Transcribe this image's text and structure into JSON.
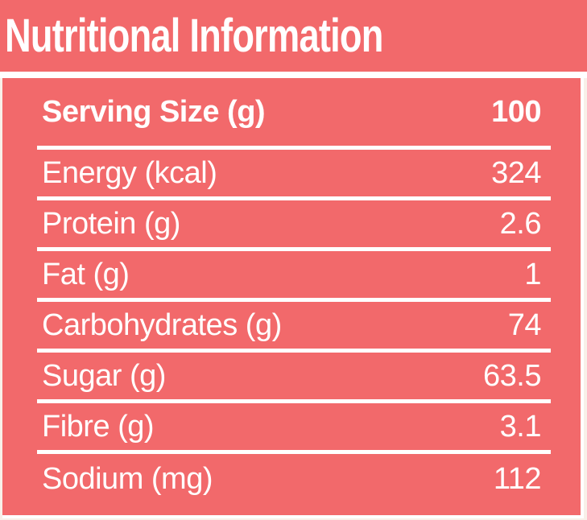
{
  "title": "Nutritional Information",
  "colors": {
    "coral": "#F2696B",
    "white": "#FFFFFF",
    "cream": "#F8F0E9",
    "text": "#FFFFFF"
  },
  "table": {
    "rows": [
      {
        "label": "Serving Size (g)",
        "value": "100",
        "bold": true
      },
      {
        "label": "Energy (kcal)",
        "value": "324",
        "bold": false
      },
      {
        "label": "Protein (g)",
        "value": "2.6",
        "bold": false
      },
      {
        "label": "Fat (g)",
        "value": "1",
        "bold": false
      },
      {
        "label": "Carbohydrates (g)",
        "value": "74",
        "bold": false
      },
      {
        "label": "Sugar (g)",
        "value": "63.5",
        "bold": false
      },
      {
        "label": "Fibre (g)",
        "value": "3.1",
        "bold": false
      },
      {
        "label": "Sodium (mg)",
        "value": "112",
        "bold": false
      }
    ]
  }
}
